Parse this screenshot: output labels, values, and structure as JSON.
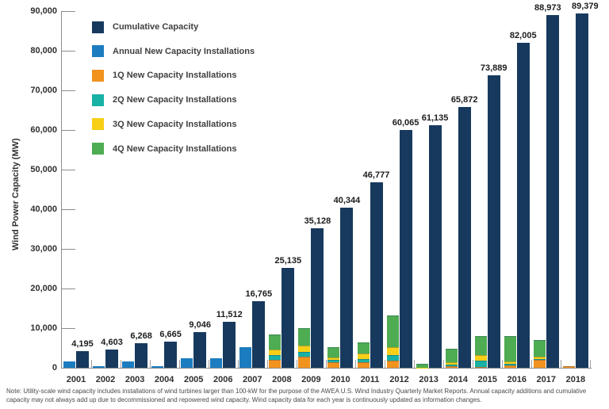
{
  "note": "Note: Utility-scale wind capacity includes installations of wind turbines larger than 100-kW for the purpose of the AWEA U.S. Wind Industry Quarterly Market Reports. Annual capacity additions and cumulative capacity may not always add up due to decommissioned and repowered wind capacity. Wind capacity data for each year is continuously updated as information changes.",
  "y_axis": {
    "title": "Wind Power Capacity (MW)",
    "tick_labels": [
      "0",
      "10,000",
      "20,000",
      "30,000",
      "40,000",
      "50,000",
      "60,000",
      "70,000",
      "80,000",
      "90,000"
    ]
  },
  "chart_data": {
    "type": "bar",
    "title": "",
    "xlabel": "",
    "ylabel": "Wind Power Capacity (MW)",
    "ylim": [
      0,
      90000
    ],
    "grid": false,
    "legend_position": "upper-left",
    "categories": [
      "2001",
      "2002",
      "2003",
      "2004",
      "2005",
      "2006",
      "2007",
      "2008",
      "2009",
      "2010",
      "2011",
      "2012",
      "2013",
      "2014",
      "2015",
      "2016",
      "2017",
      "2018"
    ],
    "series": [
      {
        "name": "Cumulative Capacity",
        "color": "#17395E",
        "values": [
          4195,
          4603,
          6268,
          6665,
          9046,
          11512,
          16765,
          25135,
          35128,
          40344,
          46777,
          60065,
          61135,
          65872,
          73889,
          82005,
          88973,
          89379
        ],
        "value_labels": [
          "4,195",
          "4,603",
          "6,268",
          "6,665",
          "9,046",
          "11,512",
          "16,765",
          "25,135",
          "35,128",
          "40,344",
          "46,777",
          "60,065",
          "61,135",
          "65,872",
          "73,889",
          "82,005",
          "88,973",
          "89,379"
        ]
      },
      {
        "name": "Annual New Capacity Installations",
        "color": "#1C7CC0",
        "values": [
          1700,
          400,
          1700,
          400,
          2400,
          2500,
          5200,
          0,
          0,
          0,
          0,
          0,
          0,
          0,
          0,
          0,
          0,
          0
        ]
      },
      {
        "name": "1Q New Capacity Installations",
        "color": "#F2921F",
        "values": [
          0,
          0,
          0,
          0,
          0,
          0,
          0,
          2000,
          2800,
          1400,
          1500,
          1900,
          0,
          500,
          300,
          600,
          2100,
          400
        ]
      },
      {
        "name": "2Q New Capacity Installations",
        "color": "#18B1A5",
        "values": [
          0,
          0,
          0,
          0,
          0,
          0,
          0,
          1300,
          1200,
          700,
          800,
          1300,
          0,
          400,
          1500,
          400,
          200,
          0
        ]
      },
      {
        "name": "3Q New Capacity Installations",
        "color": "#F7CF17",
        "values": [
          0,
          0,
          0,
          0,
          0,
          0,
          0,
          1400,
          1700,
          600,
          1300,
          2000,
          100,
          500,
          1500,
          700,
          500,
          0
        ]
      },
      {
        "name": "4Q New Capacity Installations",
        "color": "#4EAC52",
        "values": [
          0,
          0,
          0,
          0,
          0,
          0,
          0,
          3700,
          4300,
          2500,
          2900,
          8100,
          1000,
          3400,
          4700,
          6400,
          4200,
          0
        ]
      }
    ]
  }
}
